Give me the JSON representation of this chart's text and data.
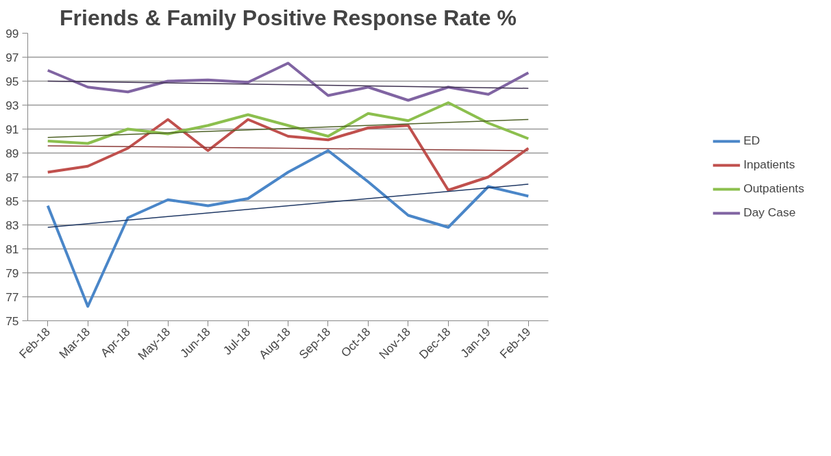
{
  "chart_data": {
    "type": "line",
    "title": "Friends & Family Positive Response Rate %",
    "categories": [
      "Feb-18",
      "Mar-18",
      "Apr-18",
      "May-18",
      "Jun-18",
      "Jul-18",
      "Aug-18",
      "Sep-18",
      "Oct-18",
      "Nov-18",
      "Dec-18",
      "Jan-19",
      "Feb-19"
    ],
    "series": [
      {
        "name": "ED",
        "color": "#4a86c8",
        "values": [
          84.6,
          76.2,
          83.6,
          85.1,
          84.6,
          85.2,
          87.4,
          89.2,
          86.6,
          83.8,
          82.8,
          86.2,
          85.4
        ]
      },
      {
        "name": "Inpatients",
        "color": "#c0504d",
        "values": [
          87.4,
          87.9,
          89.4,
          91.8,
          89.2,
          91.8,
          90.4,
          90.1,
          91.1,
          91.3,
          85.9,
          87.0,
          89.4
        ]
      },
      {
        "name": "Outpatients",
        "color": "#8cbf4e",
        "values": [
          90.0,
          89.8,
          91.0,
          90.6,
          91.3,
          92.2,
          91.3,
          90.4,
          92.3,
          91.7,
          93.2,
          91.5,
          90.2
        ]
      },
      {
        "name": "Day Case",
        "color": "#8064a2",
        "values": [
          95.9,
          94.5,
          94.1,
          95.0,
          95.1,
          94.9,
          96.5,
          93.8,
          94.5,
          93.4,
          94.5,
          93.9,
          95.7
        ]
      },
      {
        "type": "line",
        "color": "#1f3864",
        "x": [
          "Feb-18",
          "Feb-19"
        ],
        "values": [
          82.8,
          86.4
        ]
      },
      {
        "type": "line",
        "color": "#8b3a38",
        "x": [
          "Feb-18",
          "Feb-19"
        ],
        "values": [
          89.6,
          89.2
        ]
      },
      {
        "type": "line",
        "color": "#4f6228",
        "x": [
          "Feb-18",
          "Feb-19"
        ],
        "values": [
          90.3,
          91.8
        ]
      },
      {
        "type": "line",
        "color": "#3f3151",
        "x": [
          "Feb-18",
          "Feb-19"
        ],
        "values": [
          95.0,
          94.4
        ]
      }
    ],
    "ylim": [
      75,
      99
    ],
    "yticks": [
      75,
      77,
      79,
      81,
      83,
      85,
      87,
      89,
      91,
      93,
      95,
      97,
      99
    ],
    "grid": "y",
    "legend": "right",
    "marker": "none",
    "line_style": "solid"
  }
}
